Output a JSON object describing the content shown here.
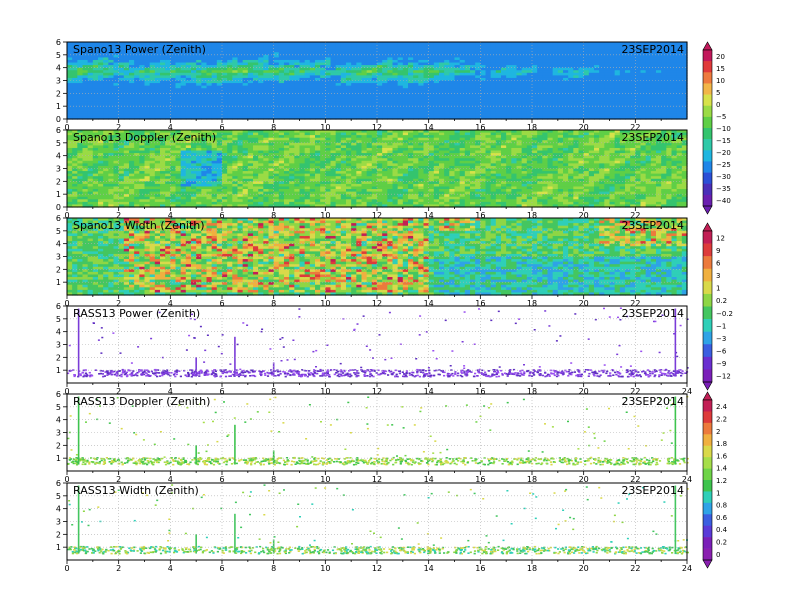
{
  "date_label": "23SEP2014",
  "panels": [
    {
      "title": "Spano13 Power (Zenith)",
      "date": "23SEP2014"
    },
    {
      "title": "Spano13 Doppler (Zenith)",
      "date": "23SEP2014"
    },
    {
      "title": "Spano13 Width (Zenith)",
      "date": "23SEP2014"
    },
    {
      "title": "RASS13 Power (Zenith)",
      "date": "23SEP2014"
    },
    {
      "title": "RASS13 Doppler (Zenith)",
      "date": "23SEP2014"
    },
    {
      "title": "RASS13 Width (Zenith)",
      "date": "23SEP2014"
    }
  ],
  "colorbars": [
    {
      "labels": [
        "20",
        "15",
        "10",
        "5",
        "0",
        "−5",
        "−10",
        "−15",
        "−20",
        "−25",
        "−30",
        "−35",
        "−40"
      ]
    },
    {
      "labels": [
        "12",
        "9",
        "6",
        "3",
        "1",
        "0.2",
        "−0.2",
        "−1",
        "−3",
        "−6",
        "−9",
        "−12"
      ]
    },
    {
      "labels": [
        "2.4",
        "2.2",
        "2",
        "1.8",
        "1.6",
        "1.4",
        "1.2",
        "1",
        "0.8",
        "0.6",
        "0.4",
        "0.2",
        "0"
      ]
    }
  ],
  "chart_data": [
    {
      "type": "heatmap",
      "title": "Spano13 Power (Zenith)",
      "date": "23SEP2014",
      "x_ticks": [
        "0",
        "2",
        "4",
        "6",
        "8",
        "10",
        "12",
        "14",
        "16",
        "18",
        "20",
        "22"
      ],
      "y_ticks": [
        "0",
        "1",
        "2",
        "3",
        "4",
        "5",
        "6"
      ],
      "xlim": [
        0,
        24
      ],
      "ylim": [
        0,
        6
      ],
      "grid": true,
      "colorbar_levels": [
        20,
        15,
        10,
        5,
        0,
        -5,
        -10,
        -15,
        -20,
        -25,
        -30,
        -35,
        -40
      ]
    },
    {
      "type": "heatmap",
      "title": "Spano13 Doppler (Zenith)",
      "date": "23SEP2014",
      "x_ticks": [
        "0",
        "2",
        "4",
        "6",
        "8",
        "10",
        "12",
        "14",
        "16",
        "18",
        "20",
        "22"
      ],
      "y_ticks": [
        "0",
        "1",
        "2",
        "3",
        "4",
        "5",
        "6"
      ],
      "xlim": [
        0,
        24
      ],
      "ylim": [
        0,
        6
      ],
      "grid": true,
      "colorbar_levels": [
        20,
        15,
        10,
        5,
        0,
        -5,
        -10,
        -15,
        -20,
        -25,
        -30,
        -35,
        -40
      ]
    },
    {
      "type": "heatmap",
      "title": "Spano13 Width (Zenith)",
      "date": "23SEP2014",
      "x_ticks": [
        "0",
        "2",
        "4",
        "6",
        "8",
        "10",
        "12",
        "14",
        "16",
        "18",
        "20",
        "22"
      ],
      "y_ticks": [
        "1",
        "2",
        "3",
        "4",
        "5",
        "6"
      ],
      "xlim": [
        0,
        24
      ],
      "ylim": [
        0,
        6
      ],
      "grid": true,
      "colorbar_levels": [
        12,
        9,
        6,
        3,
        1,
        0.2,
        -0.2,
        -1,
        -3,
        -6,
        -9,
        -12
      ]
    },
    {
      "type": "scatter",
      "title": "RASS13 Power (Zenith)",
      "date": "23SEP2014",
      "x_ticks": [
        "0",
        "2",
        "4",
        "6",
        "8",
        "10",
        "12",
        "14",
        "16",
        "18",
        "20",
        "22",
        "24"
      ],
      "y_ticks": [
        "1",
        "2",
        "3",
        "4",
        "5",
        "6"
      ],
      "xlim": [
        0,
        24
      ],
      "ylim": [
        0,
        6
      ],
      "grid": true,
      "colorbar_levels": [
        12,
        9,
        6,
        3,
        1,
        0.2,
        -0.2,
        -1,
        -3,
        -6,
        -9,
        -12
      ]
    },
    {
      "type": "scatter",
      "title": "RASS13 Doppler (Zenith)",
      "date": "23SEP2014",
      "x_ticks": [
        "0",
        "2",
        "4",
        "6",
        "8",
        "10",
        "12",
        "14",
        "16",
        "18",
        "20",
        "22",
        "24"
      ],
      "y_ticks": [
        "1",
        "2",
        "3",
        "4",
        "5",
        "6"
      ],
      "xlim": [
        0,
        24
      ],
      "ylim": [
        0,
        6
      ],
      "grid": true,
      "colorbar_levels": [
        2.4,
        2.2,
        2,
        1.8,
        1.6,
        1.4,
        1.2,
        1,
        0.8,
        0.6,
        0.4,
        0.2,
        0
      ]
    },
    {
      "type": "scatter",
      "title": "RASS13 Width (Zenith)",
      "date": "23SEP2014",
      "x_ticks": [
        "0",
        "2",
        "4",
        "6",
        "8",
        "10",
        "12",
        "14",
        "16",
        "18",
        "20",
        "22",
        "24"
      ],
      "y_ticks": [
        "1",
        "2",
        "3",
        "4",
        "5",
        "6"
      ],
      "xlim": [
        0,
        24
      ],
      "ylim": [
        0,
        6
      ],
      "grid": true,
      "colorbar_levels": [
        2.4,
        2.2,
        2,
        1.8,
        1.6,
        1.4,
        1.2,
        1,
        0.8,
        0.6,
        0.4,
        0.2,
        0
      ]
    }
  ]
}
